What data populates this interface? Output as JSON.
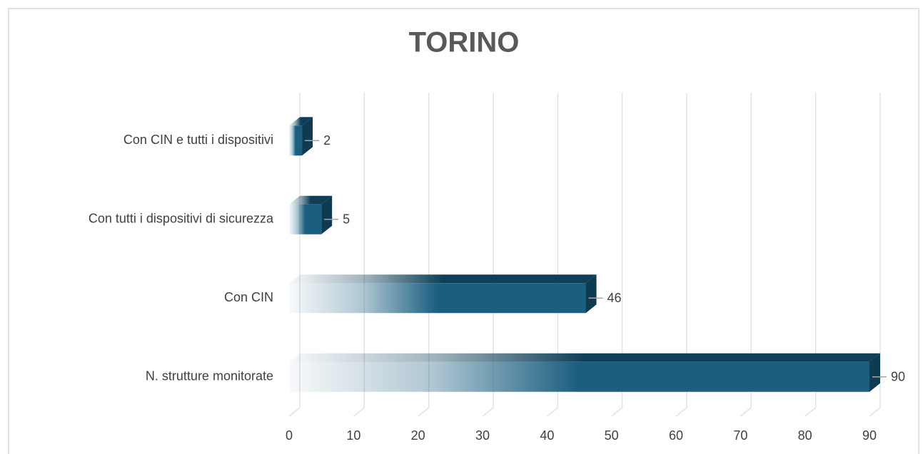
{
  "chart_data": {
    "type": "bar3d_horizontal",
    "title": "TORINO",
    "categories": [
      "Con CIN e tutti i dispositivi",
      "Con tutti i dispositivi di sicurezza",
      "Con CIN",
      "N. strutture monitorate"
    ],
    "values": [
      2,
      5,
      46,
      90
    ],
    "color": "#1a5e80",
    "xlim": [
      0,
      90
    ],
    "xticks": [
      0,
      10,
      20,
      30,
      40,
      50,
      60,
      70,
      80,
      90
    ],
    "grid": true
  }
}
